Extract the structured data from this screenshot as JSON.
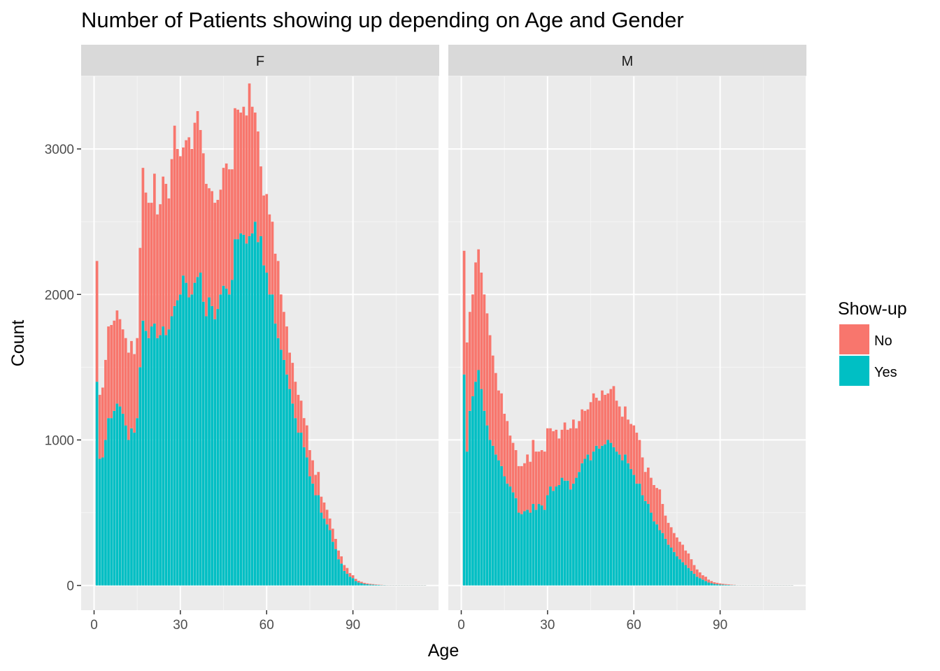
{
  "chart_data": {
    "type": "bar",
    "stacked": true,
    "title": "Number of Patients showing up depending on Age and Gender",
    "xlabel": "Age",
    "ylabel": "Count",
    "xlim": [
      -4.5,
      120
    ],
    "ylim": [
      -170,
      3500
    ],
    "x_ticks": [
      0,
      30,
      60,
      90
    ],
    "y_ticks": [
      0,
      1000,
      2000,
      3000
    ],
    "grid": true,
    "legend": {
      "title": "Show-up",
      "position": "right",
      "items": [
        {
          "label": "No",
          "color": "#F8766D"
        },
        {
          "label": "Yes",
          "color": "#00BFC4"
        }
      ]
    },
    "series_colors": {
      "No": "#F8766D",
      "Yes": "#00BFC4"
    },
    "facets": [
      {
        "label": "F",
        "x": [
          1,
          2,
          3,
          4,
          5,
          6,
          7,
          8,
          9,
          10,
          11,
          12,
          13,
          14,
          15,
          16,
          17,
          18,
          19,
          20,
          21,
          22,
          23,
          24,
          25,
          26,
          27,
          28,
          29,
          30,
          31,
          32,
          33,
          34,
          35,
          36,
          37,
          38,
          39,
          40,
          41,
          42,
          43,
          44,
          45,
          46,
          47,
          48,
          49,
          50,
          51,
          52,
          53,
          54,
          55,
          56,
          57,
          58,
          59,
          60,
          61,
          62,
          63,
          64,
          65,
          66,
          67,
          68,
          69,
          70,
          71,
          72,
          73,
          74,
          75,
          76,
          77,
          78,
          79,
          80,
          81,
          82,
          83,
          84,
          85,
          86,
          87,
          88,
          89,
          90,
          91,
          92,
          93,
          94,
          95,
          96,
          97,
          98,
          99,
          100,
          101,
          102,
          103,
          104,
          105,
          106,
          107,
          108,
          109,
          110,
          111,
          112,
          113,
          114,
          115
        ],
        "yes": [
          1400,
          870,
          880,
          1000,
          1150,
          1150,
          1200,
          1250,
          1230,
          1180,
          1100,
          1000,
          1080,
          1050,
          1150,
          1500,
          1820,
          1750,
          1700,
          1780,
          1800,
          1700,
          1720,
          1780,
          1720,
          1760,
          1850,
          1920,
          1960,
          2000,
          2130,
          2080,
          1980,
          2000,
          2080,
          2120,
          2150,
          1950,
          1850,
          1980,
          1920,
          1830,
          1900,
          2000,
          2060,
          2040,
          2000,
          2100,
          2380,
          2380,
          2420,
          2410,
          2350,
          2400,
          2420,
          2500,
          2360,
          2400,
          2200,
          2150,
          2000,
          2000,
          1800,
          1700,
          1620,
          1550,
          1450,
          1350,
          1250,
          1150,
          1050,
          1050,
          950,
          880,
          750,
          700,
          620,
          620,
          500,
          460,
          420,
          380,
          300,
          250,
          180,
          150,
          100,
          80,
          60,
          50,
          30,
          20,
          15,
          10,
          8,
          6,
          5,
          4,
          3,
          2,
          2,
          1,
          1,
          1,
          1,
          1,
          1,
          1,
          1,
          1,
          1,
          1,
          1,
          1,
          1
        ],
        "no": [
          830,
          440,
          480,
          550,
          630,
          640,
          620,
          640,
          600,
          580,
          600,
          600,
          600,
          540,
          550,
          820,
          1050,
          950,
          930,
          850,
          1030,
          850,
          900,
          1030,
          1040,
          900,
          1080,
          1240,
          1040,
          950,
          880,
          980,
          1100,
          1000,
          1100,
          1140,
          980,
          1020,
          910,
          750,
          790,
          800,
          750,
          720,
          810,
          860,
          860,
          760,
          900,
          890,
          830,
          880,
          880,
          1050,
          870,
          750,
          760,
          480,
          480,
          540,
          550,
          500,
          480,
          530,
          380,
          330,
          330,
          250,
          280,
          250,
          260,
          220,
          200,
          220,
          180,
          160,
          140,
          160,
          110,
          110,
          100,
          80,
          90,
          70,
          60,
          50,
          40,
          40,
          25,
          20,
          15,
          12,
          10,
          8,
          6,
          5,
          4,
          3,
          2,
          2,
          1,
          1,
          1,
          1,
          1,
          1,
          1,
          1,
          1,
          1,
          1,
          1,
          1,
          1,
          1
        ]
      },
      {
        "label": "M",
        "x": [
          1,
          2,
          3,
          4,
          5,
          6,
          7,
          8,
          9,
          10,
          11,
          12,
          13,
          14,
          15,
          16,
          17,
          18,
          19,
          20,
          21,
          22,
          23,
          24,
          25,
          26,
          27,
          28,
          29,
          30,
          31,
          32,
          33,
          34,
          35,
          36,
          37,
          38,
          39,
          40,
          41,
          42,
          43,
          44,
          45,
          46,
          47,
          48,
          49,
          50,
          51,
          52,
          53,
          54,
          55,
          56,
          57,
          58,
          59,
          60,
          61,
          62,
          63,
          64,
          65,
          66,
          67,
          68,
          69,
          70,
          71,
          72,
          73,
          74,
          75,
          76,
          77,
          78,
          79,
          80,
          81,
          82,
          83,
          84,
          85,
          86,
          87,
          88,
          89,
          90,
          91,
          92,
          93,
          94,
          95,
          96,
          97,
          98,
          99,
          100,
          101,
          102,
          103,
          104,
          105,
          106,
          107,
          108,
          109,
          110,
          111,
          112,
          113,
          114,
          115
        ],
        "yes": [
          1450,
          920,
          1200,
          1300,
          1400,
          1480,
          1350,
          1200,
          1100,
          1000,
          960,
          900,
          860,
          820,
          750,
          700,
          680,
          640,
          600,
          500,
          490,
          510,
          520,
          500,
          560,
          520,
          560,
          550,
          520,
          620,
          680,
          650,
          680,
          690,
          740,
          720,
          720,
          660,
          700,
          740,
          780,
          840,
          870,
          900,
          860,
          920,
          960,
          940,
          960,
          970,
          1000,
          980,
          950,
          920,
          900,
          860,
          900,
          840,
          800,
          760,
          700,
          700,
          620,
          580,
          560,
          500,
          440,
          420,
          380,
          360,
          320,
          280,
          260,
          230,
          200,
          180,
          160,
          140,
          120,
          100,
          80,
          60,
          50,
          40,
          30,
          20,
          15,
          10,
          8,
          6,
          5,
          4,
          3,
          2,
          2,
          1,
          1,
          1,
          1,
          1,
          1,
          1,
          1,
          1,
          1,
          1,
          1,
          1,
          1,
          1,
          1,
          1,
          1,
          1,
          1
        ],
        "no": [
          850,
          750,
          680,
          700,
          820,
          830,
          800,
          800,
          770,
          720,
          620,
          560,
          480,
          500,
          430,
          430,
          350,
          340,
          330,
          320,
          330,
          330,
          380,
          350,
          440,
          400,
          360,
          380,
          400,
          460,
          400,
          410,
          390,
          320,
          330,
          400,
          350,
          420,
          440,
          340,
          350,
          370,
          330,
          310,
          400,
          400,
          330,
          330,
          380,
          340,
          320,
          370,
          420,
          350,
          330,
          300,
          330,
          300,
          310,
          340,
          350,
          300,
          260,
          200,
          250,
          240,
          250,
          250,
          280,
          200,
          160,
          150,
          140,
          130,
          130,
          120,
          120,
          100,
          100,
          80,
          60,
          50,
          40,
          30,
          30,
          20,
          15,
          12,
          10,
          8,
          6,
          5,
          4,
          3,
          2,
          1,
          1,
          1,
          1,
          1,
          1,
          1,
          1,
          1,
          1,
          1,
          1,
          1,
          1,
          1,
          1,
          1,
          1,
          1,
          1
        ]
      }
    ]
  }
}
